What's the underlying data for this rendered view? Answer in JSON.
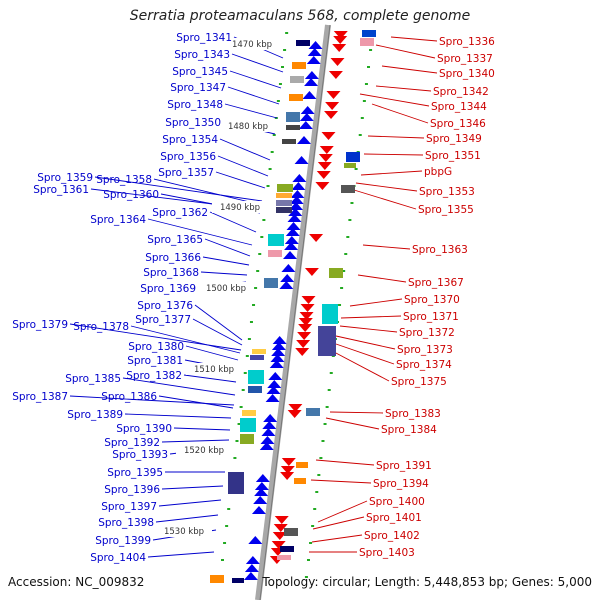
{
  "title": "Serratia proteamaculans 568, complete genome",
  "accession": "Accession: NC_009832",
  "summary": "Topology: circular; Length: 5,448,853 bp; Genes: 5,000",
  "colors": {
    "backbone": "#a0a0a0",
    "left_label": "#0000cc",
    "right_label": "#cc0000",
    "left_gene": "#0000ee",
    "right_gene": "#ee0000",
    "tick": "#22aa22"
  },
  "scale_labels": [
    "1470 kbp",
    "1480 kbp",
    "1490 kbp",
    "1500 kbp",
    "1510 kbp",
    "1520 kbp",
    "1530 kbp"
  ],
  "left_labels": [
    "Spro_1341",
    "Spro_1343",
    "Spro_1345",
    "Spro_1347",
    "Spro_1348",
    "Spro_1350",
    "Spro_1354",
    "Spro_1356",
    "Spro_1357",
    "Spro_1359",
    "Spro_1358",
    "Spro_1361",
    "Spro_1360",
    "Spro_1362",
    "Spro_1364",
    "Spro_1365",
    "Spro_1366",
    "Spro_1368",
    "Spro_1369",
    "Spro_1376",
    "Spro_1377",
    "Spro_1379",
    "Spro_1378",
    "Spro_1380",
    "Spro_1381",
    "Spro_1382",
    "Spro_1385",
    "Spro_1387",
    "Spro_1386",
    "Spro_1389",
    "Spro_1390",
    "Spro_1392",
    "Spro_1393",
    "Spro_1395",
    "Spro_1396",
    "Spro_1397",
    "Spro_1398",
    "Spro_1399",
    "Spro_1404"
  ],
  "right_labels": [
    "Spro_1336",
    "Spro_1337",
    "Spro_1340",
    "Spro_1342",
    "Spro_1344",
    "Spro_1346",
    "Spro_1349",
    "Spro_1351",
    "pbpG",
    "Spro_1353",
    "Spro_1355",
    "Spro_1363",
    "Spro_1367",
    "Spro_1370",
    "Spro_1371",
    "Spro_1372",
    "Spro_1373",
    "Spro_1374",
    "Spro_1375",
    "Spro_1383",
    "Spro_1384",
    "Spro_1391",
    "Spro_1394",
    "Spro_1400",
    "Spro_1401",
    "Spro_1402",
    "Spro_1403"
  ]
}
